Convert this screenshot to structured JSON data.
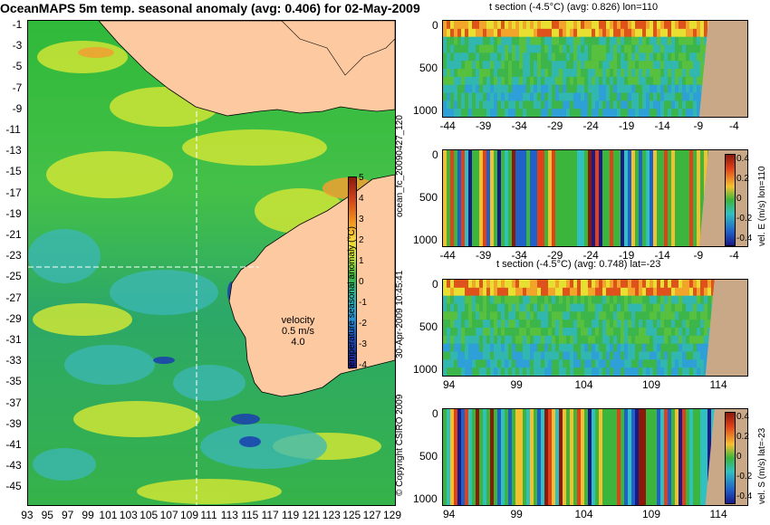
{
  "main_title": "OceanMAPS 5m temp. seasonal anomaly (avg: 0.406) for 02-May-2009",
  "map": {
    "lat_labels": [
      "-1",
      "-3",
      "-5",
      "-7",
      "-9",
      "-11",
      "-13",
      "-15",
      "-17",
      "-19",
      "-21",
      "-23",
      "-25",
      "-27",
      "-29",
      "-31",
      "-33",
      "-35",
      "-37",
      "-39",
      "-41",
      "-43",
      "-45"
    ],
    "lon_labels": [
      "93",
      "95",
      "97",
      "99",
      "101",
      "103",
      "105",
      "107",
      "109",
      "111",
      "113",
      "115",
      "117",
      "119",
      "121",
      "123",
      "125",
      "127",
      "129"
    ],
    "velocity_label": "velocity",
    "velocity_speed": "0.5 m/s",
    "velocity_arrow": "4.0",
    "colorbar_title": "temperature seasonal anomaly (°C)",
    "colorbar_ticks": [
      "5",
      "4",
      "3",
      "2",
      "1",
      "0",
      "-1",
      "-2",
      "-3",
      "-4"
    ],
    "land_color": "#fdc9a0",
    "crosshair_lat": -23,
    "crosshair_lon": 110
  },
  "side_labels": {
    "run_id": "ocean_fc_20090427_120",
    "run_time": "30-Apr-2009 10:45:41",
    "copyright": "© Copyright CSIRO 2009"
  },
  "chart_data": [
    {
      "type": "heatmap",
      "title": "t section (-4.5°C) (avg: 0.826) lon=110",
      "x_ticks": [
        "-44",
        "-39",
        "-34",
        "-29",
        "-24",
        "-19",
        "-14",
        "-9",
        "-4"
      ],
      "y_ticks": [
        "0",
        "500",
        "1000"
      ],
      "xlim": [
        -45,
        -2
      ],
      "ylim": [
        1050,
        0
      ]
    },
    {
      "type": "heatmap",
      "title": "",
      "x_ticks": [
        "-44",
        "-39",
        "-34",
        "-29",
        "-24",
        "-19",
        "-14",
        "-9",
        "-4"
      ],
      "y_ticks": [
        "0",
        "500",
        "1000"
      ],
      "xlim": [
        -45,
        -2
      ],
      "ylim": [
        1050,
        0
      ],
      "colorbar_title": "vel. E (m/s) lon=110",
      "colorbar_ticks": [
        "0.4",
        "0.2",
        "0",
        "-0.2",
        "-0.4"
      ]
    },
    {
      "type": "heatmap",
      "title": "t section (-4.5°C) (avg: 0.748) lat=-23",
      "x_ticks": [
        "94",
        "99",
        "104",
        "109",
        "114"
      ],
      "y_ticks": [
        "0",
        "500",
        "1000"
      ],
      "xlim": [
        93,
        117
      ],
      "ylim": [
        1050,
        0
      ]
    },
    {
      "type": "heatmap",
      "title": "",
      "x_ticks": [
        "94",
        "99",
        "104",
        "109",
        "114"
      ],
      "y_ticks": [
        "0",
        "500",
        "1000"
      ],
      "xlim": [
        93,
        117
      ],
      "ylim": [
        1050,
        0
      ],
      "colorbar_title": "vel. S (m/s) lat=-23",
      "colorbar_ticks": [
        "0.4",
        "0.2",
        "0",
        "-0.2",
        "-0.4"
      ]
    }
  ]
}
